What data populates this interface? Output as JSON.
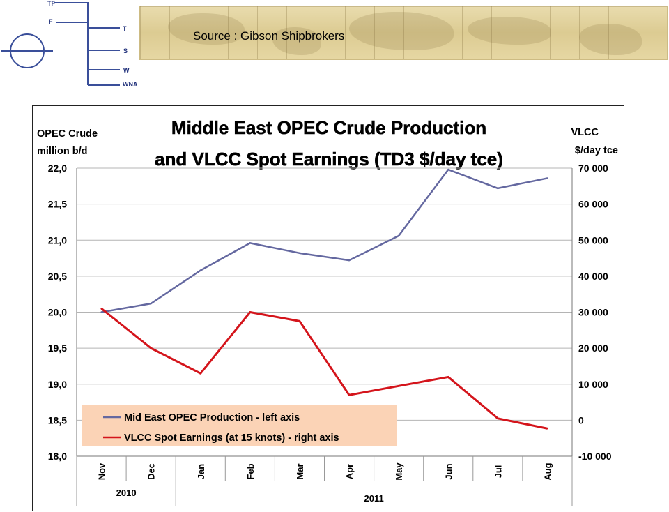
{
  "logo": {
    "labels": [
      "TF",
      "F",
      "T",
      "S",
      "W",
      "WNA"
    ]
  },
  "banner": {
    "source": "Source : Gibson Shipbrokers"
  },
  "chart_data": {
    "type": "line",
    "title_lines": [
      "Middle East OPEC Crude Production",
      "and VLCC Spot Earnings (TD3 $/day tce)"
    ],
    "left_axis": {
      "label_lines": [
        "OPEC Crude",
        "million b/d"
      ],
      "min": 18.0,
      "max": 22.0,
      "step": 0.5,
      "tick_labels": [
        "18,0",
        "18,5",
        "19,0",
        "19,5",
        "20,0",
        "20,5",
        "21,0",
        "21,5",
        "22,0"
      ]
    },
    "right_axis": {
      "label_lines": [
        "VLCC",
        "$/day tce"
      ],
      "min": -10000,
      "max": 70000,
      "step": 10000,
      "tick_labels": [
        "-10 000",
        "0",
        "10 000",
        "20 000",
        "30 000",
        "40 000",
        "50 000",
        "60 000",
        "70 000"
      ]
    },
    "categories": [
      "Nov",
      "Dec",
      "Jan",
      "Feb",
      "Mar",
      "Apr",
      "May",
      "Jun",
      "Jul",
      "Aug"
    ],
    "year_groups": [
      {
        "label": "2010",
        "span": 2
      },
      {
        "label": "2011",
        "span": 8
      }
    ],
    "series": [
      {
        "name": "Mid East OPEC Production - left axis",
        "axis": "left",
        "color": "#6468a0",
        "values": [
          20.0,
          20.12,
          20.58,
          20.96,
          20.82,
          20.72,
          21.06,
          21.98,
          21.72,
          21.86
        ]
      },
      {
        "name": "VLCC Spot Earnings (at 15 knots) - right axis",
        "axis": "right",
        "color": "#d4141b",
        "values": [
          31000,
          20000,
          13000,
          30000,
          27500,
          7000,
          9500,
          12000,
          500,
          -2300
        ]
      }
    ],
    "grid": "horizontal",
    "legend_position": "bottom-left",
    "legend_background": "#fbd3b6"
  }
}
